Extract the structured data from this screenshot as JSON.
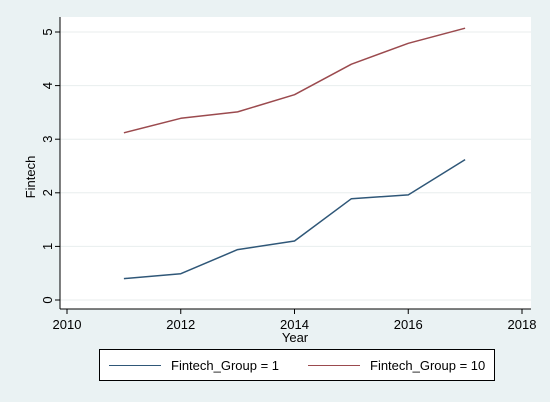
{
  "chart_data": {
    "type": "line",
    "title": "",
    "xlabel": "Year",
    "ylabel": "Fintech",
    "xlim": [
      2010,
      2018
    ],
    "ylim": [
      0,
      5
    ],
    "xticks": [
      2010,
      2012,
      2014,
      2016,
      2018
    ],
    "yticks": [
      0,
      1,
      2,
      3,
      4,
      5
    ],
    "grid": true,
    "legend_position": "bottom",
    "x": [
      2011,
      2012,
      2013,
      2014,
      2015,
      2016,
      2017
    ],
    "series": [
      {
        "name": "Fintech_Group = 1",
        "color": "#2f5778",
        "values": [
          0.4,
          0.49,
          0.94,
          1.1,
          1.89,
          1.96,
          2.62
        ]
      },
      {
        "name": "Fintech_Group = 10",
        "color": "#9b4a4e",
        "values": [
          3.12,
          3.39,
          3.51,
          3.83,
          4.4,
          4.79,
          5.07
        ]
      }
    ]
  }
}
